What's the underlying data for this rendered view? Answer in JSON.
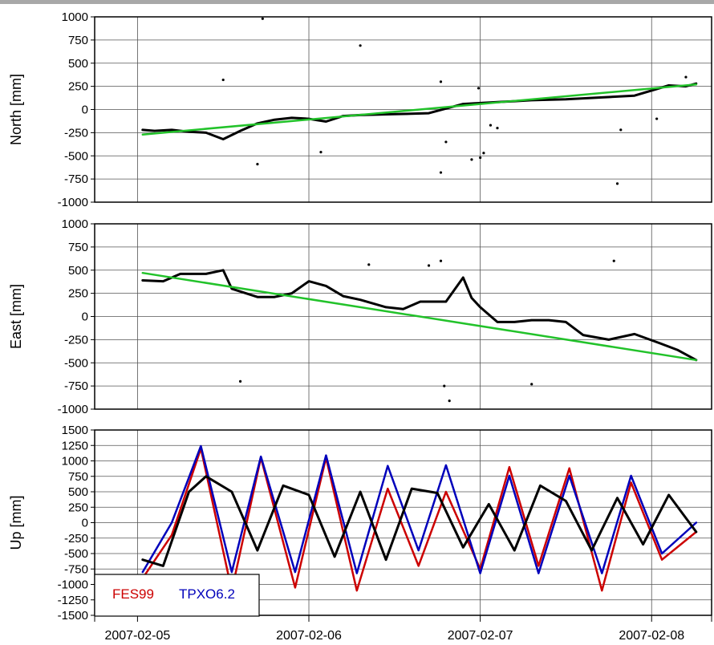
{
  "chart_data": [
    {
      "type": "scatter",
      "ylabel": "North [mm]",
      "ylim": [
        -1000,
        1000
      ],
      "yticks": [
        1000,
        750,
        500,
        250,
        0,
        -250,
        -500,
        -750,
        -1000
      ],
      "xlim": [
        -0.25,
        3.35
      ],
      "x_ticks": [
        0,
        1,
        2,
        3
      ],
      "grid": true,
      "series": [
        {
          "color": "#000000",
          "x": [
            0.03,
            0.1,
            0.2,
            0.3,
            0.4,
            0.5,
            0.6,
            0.7,
            0.8,
            0.9,
            1.0,
            1.1,
            1.2,
            1.3,
            1.5,
            1.7,
            1.9,
            2.1,
            2.3,
            2.5,
            2.7,
            2.9,
            3.1,
            3.2,
            3.26
          ],
          "y": [
            -220,
            -230,
            -220,
            -240,
            -250,
            -320,
            -230,
            -150,
            -110,
            -90,
            -100,
            -130,
            -70,
            -60,
            -50,
            -40,
            60,
            80,
            100,
            110,
            130,
            150,
            260,
            250,
            280
          ]
        },
        {
          "color": "#000000",
          "x": [
            1.95,
            2.0,
            2.02
          ],
          "y": [
            -540,
            -520,
            -470
          ]
        },
        {
          "color": "#000000",
          "x": [
            0.73,
            1.3,
            0.5,
            1.77,
            1.99,
            3.2,
            1.07,
            0.7,
            1.77,
            1.8,
            2.06,
            2.8,
            2.82,
            2.1,
            3.03
          ],
          "y": [
            980,
            690,
            320,
            300,
            230,
            350,
            -460,
            -590,
            -680,
            -350,
            -170,
            -800,
            -220,
            -200,
            -100
          ]
        },
        {
          "color": "#22c22a",
          "x": [
            0.03,
            3.26
          ],
          "y": [
            -270,
            270
          ]
        }
      ]
    },
    {
      "type": "scatter",
      "ylabel": "East [mm]",
      "ylim": [
        -1000,
        1000
      ],
      "yticks": [
        1000,
        750,
        500,
        250,
        0,
        -250,
        -500,
        -750,
        -1000
      ],
      "xlim": [
        -0.25,
        3.35
      ],
      "x_ticks": [
        0,
        1,
        2,
        3
      ],
      "grid": true,
      "series": [
        {
          "color": "#000000",
          "x": [
            0.03,
            0.15,
            0.25,
            0.4,
            0.5,
            0.55,
            0.7,
            0.8,
            0.9,
            1.0,
            1.1,
            1.2,
            1.3,
            1.45,
            1.55,
            1.65,
            1.8,
            1.9,
            1.95,
            2.0,
            2.1,
            2.2,
            2.3,
            2.4,
            2.5,
            2.6,
            2.75,
            2.9,
            3.05,
            3.15,
            3.26
          ],
          "y": [
            390,
            380,
            460,
            460,
            500,
            300,
            210,
            210,
            250,
            380,
            330,
            220,
            180,
            100,
            80,
            160,
            160,
            420,
            200,
            100,
            -60,
            -60,
            -40,
            -40,
            -60,
            -200,
            -250,
            -190,
            -290,
            -360,
            -470
          ]
        },
        {
          "color": "#000000",
          "x": [
            0.6,
            1.7,
            1.77,
            1.82,
            2.3,
            2.78,
            1.79,
            1.35
          ],
          "y": [
            -700,
            550,
            600,
            -910,
            -730,
            600,
            -750,
            560
          ]
        },
        {
          "color": "#22c22a",
          "x": [
            0.03,
            3.26
          ],
          "y": [
            470,
            -470
          ]
        }
      ]
    },
    {
      "type": "line",
      "ylabel": "Up [mm]",
      "ylim": [
        -1500,
        1500
      ],
      "yticks": [
        1500,
        1250,
        1000,
        750,
        500,
        250,
        0,
        -250,
        -500,
        -750,
        -1000,
        -1250,
        -1500
      ],
      "xlim": [
        -0.25,
        3.35
      ],
      "x_ticks": [
        0,
        1,
        2,
        3
      ],
      "x_tick_labels": [
        "2007-02-05",
        "2007-02-06",
        "2007-02-07",
        "2007-02-08"
      ],
      "grid": true,
      "series": [
        {
          "name": "FES99",
          "color": "#cc0000",
          "x": [
            0.03,
            0.2,
            0.37,
            0.55,
            0.72,
            0.92,
            1.1,
            1.28,
            1.46,
            1.64,
            1.8,
            2.0,
            2.17,
            2.34,
            2.52,
            2.71,
            2.88,
            3.06,
            3.26
          ],
          "y": [
            -900,
            -200,
            1200,
            -1100,
            1050,
            -1050,
            1050,
            -1100,
            550,
            -700,
            500,
            -750,
            900,
            -700,
            880,
            -1100,
            650,
            -600,
            -150
          ]
        },
        {
          "name": "TPXO6.2",
          "color": "#0000bb",
          "x": [
            0.03,
            0.2,
            0.37,
            0.55,
            0.72,
            0.92,
            1.1,
            1.28,
            1.46,
            1.64,
            1.8,
            2.0,
            2.17,
            2.34,
            2.52,
            2.71,
            2.88,
            3.06,
            3.26
          ],
          "y": [
            -800,
            0,
            1240,
            -800,
            1070,
            -800,
            1090,
            -820,
            920,
            -450,
            930,
            -820,
            760,
            -820,
            760,
            -820,
            760,
            -500,
            0
          ]
        },
        {
          "color": "#000000",
          "x": [
            0.03,
            0.15,
            0.3,
            0.4,
            0.55,
            0.7,
            0.85,
            1.0,
            1.15,
            1.3,
            1.45,
            1.6,
            1.75,
            1.9,
            2.05,
            2.2,
            2.35,
            2.5,
            2.65,
            2.8,
            2.95,
            3.1,
            3.26
          ],
          "y": [
            -600,
            -700,
            500,
            750,
            500,
            -450,
            600,
            450,
            -550,
            500,
            -600,
            550,
            480,
            -400,
            300,
            -450,
            600,
            350,
            -450,
            400,
            -350,
            450,
            -150
          ]
        }
      ]
    }
  ]
}
